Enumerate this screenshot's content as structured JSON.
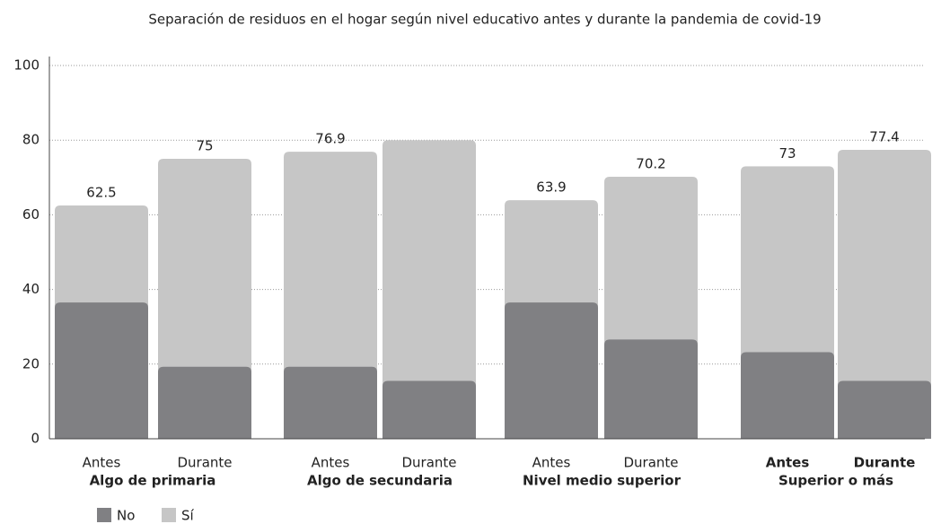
{
  "chart_data": {
    "type": "bar",
    "title": "Separación de residuos en el hogar según nivel educativo antes y durante la pandemia de covid-19",
    "categories": [
      "Antes",
      "Durante",
      "Antes",
      "Durante",
      "Antes",
      "Durante",
      "Antes",
      "Durante"
    ],
    "groups": [
      "Algo de primaria",
      "Algo de secundaria",
      "Nivel medio superior",
      "Superior o más"
    ],
    "series": [
      {
        "name": "No",
        "color": "#808083",
        "values": [
          36.5,
          19.3,
          19.3,
          15.5,
          36.5,
          26.6,
          23.2,
          15.5
        ]
      },
      {
        "name": "Sí",
        "color": "#c6c6c6",
        "values": [
          62.5,
          75,
          76.9,
          80,
          63.9,
          70.2,
          73,
          77.4
        ],
        "value_labels": [
          "62.5",
          "75",
          "76.9",
          null,
          "63.9",
          "70.2",
          "73",
          "77.4"
        ]
      }
    ],
    "ylim": [
      0,
      100
    ],
    "yticks": [
      0,
      20,
      40,
      60,
      80,
      100
    ],
    "grid": true
  }
}
